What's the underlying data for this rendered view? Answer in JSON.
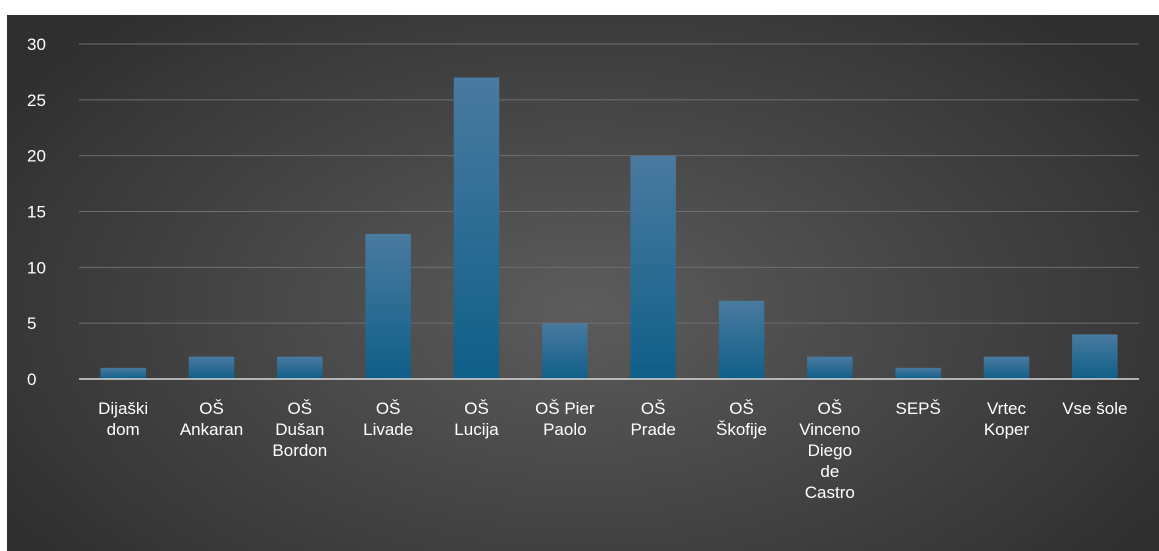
{
  "chart_data": {
    "type": "bar",
    "categories": [
      [
        "Dijaški",
        "dom"
      ],
      [
        "OŠ",
        "Ankaran"
      ],
      [
        "OŠ",
        "Dušan",
        "Bordon"
      ],
      [
        "OŠ",
        "Livade"
      ],
      [
        "OŠ",
        "Lucija"
      ],
      [
        "OŠ Pier",
        "Paolo"
      ],
      [
        "OŠ",
        "Prade"
      ],
      [
        "OŠ",
        "Škofije"
      ],
      [
        "OŠ",
        "Vinceno",
        "Diego",
        "de",
        "Castro"
      ],
      [
        "SEPŠ"
      ],
      [
        "Vrtec",
        "Koper"
      ],
      [
        "Vse šole"
      ]
    ],
    "values": [
      1,
      2,
      2,
      13,
      27,
      5,
      20,
      7,
      2,
      1,
      2,
      4
    ],
    "ylim": [
      0,
      30
    ],
    "yticks": [
      0,
      5,
      10,
      15,
      20,
      25,
      30
    ],
    "grid": true,
    "colors": {
      "bar_top": "#4a7aa0",
      "bar_bottom": "#0f5f88",
      "grid": "#6e6e6e",
      "axis": "#d9d9d9",
      "text": "#ffffff"
    }
  }
}
